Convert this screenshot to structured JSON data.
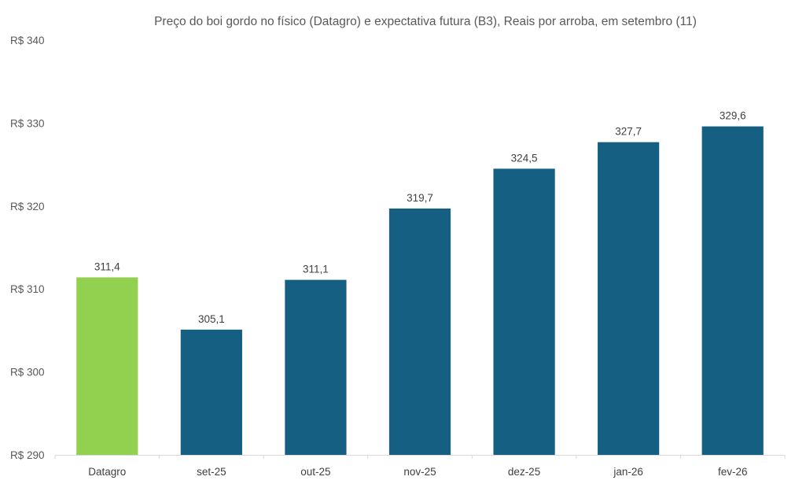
{
  "chart_data": {
    "type": "bar",
    "title": "Preço do boi gordo no físico (Datagro)  e expectativa futura (B3), Reais por arroba, em setembro (11)",
    "xlabel": "",
    "ylabel": "",
    "ylim": [
      290,
      340
    ],
    "y_step": 10,
    "y_tick_prefix": "R$ ",
    "y_ticks": [
      "R$ 290",
      "R$ 300",
      "R$ 310",
      "R$ 320",
      "R$ 330",
      "R$ 340"
    ],
    "grid": false,
    "legend": "none",
    "categories": [
      "Datagro",
      "set-25",
      "out-25",
      "nov-25",
      "dez-25",
      "jan-26",
      "fev-26"
    ],
    "values": [
      311.4,
      305.1,
      311.1,
      319.7,
      324.5,
      327.7,
      329.6
    ],
    "data_labels": [
      "311,4",
      "305,1",
      "311,1",
      "319,7",
      "324,5",
      "327,7",
      "329,6"
    ],
    "colors": [
      "#92d050",
      "#156082",
      "#156082",
      "#156082",
      "#156082",
      "#156082",
      "#156082"
    ],
    "axis_color": "#d9d9d9"
  }
}
